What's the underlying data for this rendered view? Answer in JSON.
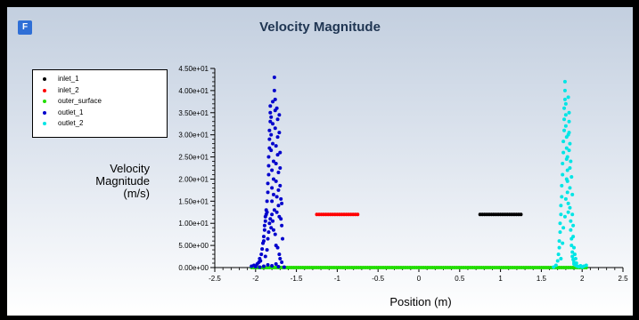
{
  "app": {
    "logo_letter": "F"
  },
  "chart_data": {
    "type": "scatter",
    "title": "Velocity Magnitude",
    "xlabel": "Position (m)",
    "ylabel_lines": [
      "Velocity",
      "Magnitude",
      "(m/s)"
    ],
    "xlim": [
      -2.5,
      2.5
    ],
    "ylim": [
      0,
      45
    ],
    "xticks": [
      -2.5,
      -2,
      -1.5,
      -1,
      -0.5,
      0,
      0.5,
      1,
      1.5,
      2,
      2.5
    ],
    "xtick_labels": [
      "-2.5",
      "-2",
      "-1.5",
      "-1",
      "-0.5",
      "0",
      "0.5",
      "1",
      "1.5",
      "2",
      "2.5"
    ],
    "yticks": [
      0,
      5,
      10,
      15,
      20,
      25,
      30,
      35,
      40,
      45
    ],
    "ytick_labels": [
      "0.00e+00",
      "5.00e+00",
      "1.00e+01",
      "1.50e+01",
      "2.00e+01",
      "2.50e+01",
      "3.00e+01",
      "3.50e+01",
      "4.00e+01",
      "4.50e+01"
    ],
    "grid": false,
    "legend_position": "top-left",
    "series": [
      {
        "name": "inlet_1",
        "color": "#000000",
        "segment": {
          "x": [
            0.75,
            1.25
          ],
          "y": 12
        }
      },
      {
        "name": "inlet_2",
        "color": "#ff0000",
        "segment": {
          "x": [
            -1.25,
            -0.75
          ],
          "y": 12
        }
      },
      {
        "name": "outer_surface",
        "color": "#22dd00",
        "segment": {
          "x": [
            -2.05,
            2.05
          ],
          "y": 0
        }
      },
      {
        "name": "outlet_1",
        "color": "#0000cc",
        "points": [
          [
            -2.05,
            0.3
          ],
          [
            -2.02,
            0.5
          ],
          [
            -2.0,
            0.2
          ],
          [
            -1.98,
            0.8
          ],
          [
            -1.96,
            1.2
          ],
          [
            -1.95,
            2.0
          ],
          [
            -1.94,
            1.5
          ],
          [
            -1.93,
            3.0
          ],
          [
            -1.92,
            4.2
          ],
          [
            -1.91,
            5.5
          ],
          [
            -1.9,
            7.0
          ],
          [
            -1.9,
            6.0
          ],
          [
            -1.89,
            8.5
          ],
          [
            -1.89,
            9.5
          ],
          [
            -1.88,
            10.5
          ],
          [
            -1.88,
            11.5
          ],
          [
            -1.87,
            12.0
          ],
          [
            -1.87,
            13.0
          ],
          [
            -1.86,
            12.5
          ],
          [
            -1.86,
            15.0
          ],
          [
            -1.85,
            17.0
          ],
          [
            -1.85,
            19.0
          ],
          [
            -1.84,
            21.0
          ],
          [
            -1.84,
            23.0
          ],
          [
            -1.84,
            25.0
          ],
          [
            -1.83,
            27.0
          ],
          [
            -1.83,
            29.0
          ],
          [
            -1.83,
            31.0
          ],
          [
            -1.82,
            33.0
          ],
          [
            -1.82,
            35.0
          ],
          [
            -1.82,
            36.5
          ],
          [
            -1.81,
            34.0
          ],
          [
            -1.81,
            30.0
          ],
          [
            -1.81,
            26.5
          ],
          [
            -1.8,
            22.0
          ],
          [
            -1.8,
            18.0
          ],
          [
            -1.8,
            15.0
          ],
          [
            -1.79,
            37.5
          ],
          [
            -1.79,
            32.5
          ],
          [
            -1.79,
            28.0
          ],
          [
            -1.78,
            24.0
          ],
          [
            -1.78,
            20.0
          ],
          [
            -1.78,
            16.5
          ],
          [
            -1.77,
            13.0
          ],
          [
            -1.77,
            43.0
          ],
          [
            -1.77,
            40.0
          ],
          [
            -1.76,
            38.0
          ],
          [
            -1.76,
            35.5
          ],
          [
            -1.76,
            31.5
          ],
          [
            -1.75,
            27.5
          ],
          [
            -1.75,
            23.5
          ],
          [
            -1.75,
            19.5
          ],
          [
            -1.74,
            16.0
          ],
          [
            -1.74,
            12.5
          ],
          [
            -1.74,
            36.0
          ],
          [
            -1.73,
            33.5
          ],
          [
            -1.73,
            29.5
          ],
          [
            -1.73,
            25.5
          ],
          [
            -1.72,
            21.5
          ],
          [
            -1.72,
            17.5
          ],
          [
            -1.72,
            14.0
          ],
          [
            -1.71,
            11.5
          ],
          [
            -1.71,
            34.5
          ],
          [
            -1.71,
            30.5
          ],
          [
            -1.7,
            26.0
          ],
          [
            -1.7,
            22.5
          ],
          [
            -1.7,
            18.5
          ],
          [
            -1.69,
            15.5
          ],
          [
            -1.69,
            11.0
          ],
          [
            -1.68,
            14.5
          ],
          [
            -1.68,
            9.5
          ],
          [
            -1.67,
            6.5
          ],
          [
            -1.95,
            0.1
          ],
          [
            -1.9,
            0.3
          ],
          [
            -1.85,
            0.6
          ],
          [
            -1.8,
            0.4
          ],
          [
            -1.75,
            0.8
          ],
          [
            -1.72,
            0.2
          ],
          [
            -1.88,
            2.5
          ],
          [
            -1.86,
            4.0
          ],
          [
            -1.85,
            6.5
          ],
          [
            -1.84,
            8.0
          ],
          [
            -1.83,
            10.0
          ],
          [
            -1.82,
            11.0
          ],
          [
            -1.81,
            9.0
          ],
          [
            -1.8,
            12.0
          ],
          [
            -1.79,
            10.5
          ],
          [
            -1.78,
            8.5
          ],
          [
            -1.76,
            7.5
          ],
          [
            -1.75,
            5.0
          ],
          [
            -1.73,
            4.5
          ],
          [
            -1.71,
            3.0
          ],
          [
            -1.7,
            2.0
          ],
          [
            -1.68,
            1.2
          ],
          [
            -1.65,
            0.1
          ]
        ]
      },
      {
        "name": "outlet_2",
        "color": "#00e5e5",
        "points": [
          [
            1.65,
            0.1
          ],
          [
            1.68,
            0.5
          ],
          [
            1.7,
            1.5
          ],
          [
            1.71,
            3.0
          ],
          [
            1.72,
            4.5
          ],
          [
            1.72,
            6.0
          ],
          [
            1.73,
            8.0
          ],
          [
            1.73,
            10.0
          ],
          [
            1.74,
            12.0
          ],
          [
            1.74,
            14.0
          ],
          [
            1.75,
            16.0
          ],
          [
            1.75,
            18.5
          ],
          [
            1.76,
            21.0
          ],
          [
            1.76,
            23.5
          ],
          [
            1.77,
            26.0
          ],
          [
            1.77,
            28.5
          ],
          [
            1.78,
            31.0
          ],
          [
            1.78,
            33.5
          ],
          [
            1.78,
            36.0
          ],
          [
            1.79,
            38.0
          ],
          [
            1.79,
            42.0
          ],
          [
            1.79,
            40.0
          ],
          [
            1.8,
            37.0
          ],
          [
            1.8,
            34.5
          ],
          [
            1.8,
            32.0
          ],
          [
            1.81,
            29.5
          ],
          [
            1.81,
            27.0
          ],
          [
            1.81,
            24.5
          ],
          [
            1.82,
            22.0
          ],
          [
            1.82,
            19.5
          ],
          [
            1.82,
            17.0
          ],
          [
            1.83,
            14.5
          ],
          [
            1.83,
            12.5
          ],
          [
            1.83,
            38.5
          ],
          [
            1.84,
            35.0
          ],
          [
            1.84,
            30.5
          ],
          [
            1.84,
            26.5
          ],
          [
            1.85,
            22.5
          ],
          [
            1.85,
            18.0
          ],
          [
            1.85,
            13.5
          ],
          [
            1.86,
            10.5
          ],
          [
            1.86,
            8.5
          ],
          [
            1.87,
            6.5
          ],
          [
            1.87,
            5.0
          ],
          [
            1.88,
            3.5
          ],
          [
            1.88,
            2.5
          ],
          [
            1.89,
            1.8
          ],
          [
            1.9,
            1.2
          ],
          [
            1.9,
            0.8
          ],
          [
            1.92,
            0.5
          ],
          [
            1.94,
            0.3
          ],
          [
            1.96,
            0.2
          ],
          [
            1.98,
            0.4
          ],
          [
            2.0,
            0.1
          ],
          [
            2.02,
            0.3
          ],
          [
            2.05,
            0.5
          ],
          [
            1.74,
            2.0
          ],
          [
            1.76,
            5.5
          ],
          [
            1.77,
            9.0
          ],
          [
            1.79,
            11.5
          ],
          [
            1.8,
            15.5
          ],
          [
            1.81,
            20.0
          ],
          [
            1.82,
            25.0
          ],
          [
            1.83,
            30.0
          ],
          [
            1.84,
            33.0
          ],
          [
            1.85,
            28.0
          ],
          [
            1.86,
            24.0
          ],
          [
            1.87,
            20.5
          ],
          [
            1.88,
            16.5
          ],
          [
            1.88,
            12.0
          ],
          [
            1.89,
            9.5
          ],
          [
            1.89,
            7.0
          ],
          [
            1.9,
            4.5
          ],
          [
            1.91,
            3.0
          ],
          [
            1.92,
            2.0
          ],
          [
            1.93,
            1.0
          ]
        ]
      }
    ]
  }
}
